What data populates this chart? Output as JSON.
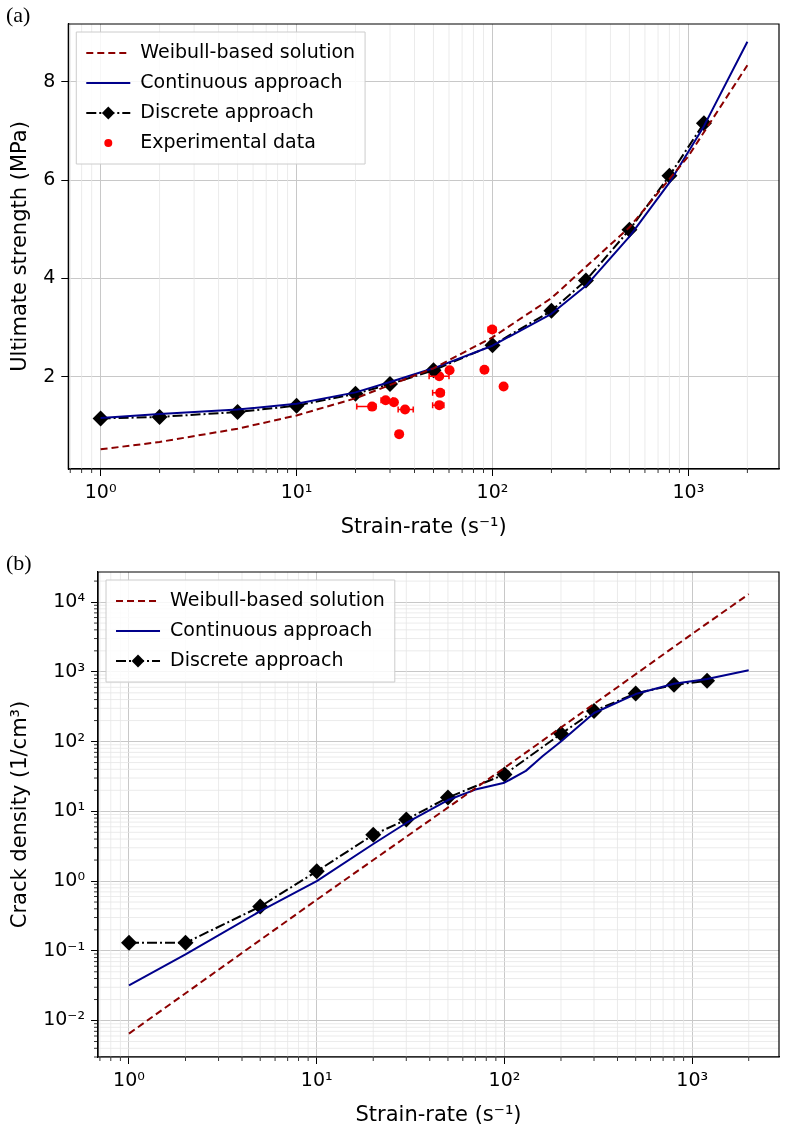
{
  "chart_data": [
    {
      "type": "line",
      "title": "(a)",
      "xlabel": "Strain-rate (s⁻¹)",
      "ylabel": "Ultimate strength (MPa)",
      "log": "x",
      "grid": true,
      "legend": "top left",
      "xlim": [
        0.684,
        2900
      ],
      "xticks": [
        {
          "value": 1,
          "label": "10⁰"
        },
        {
          "value": 10,
          "label": "10¹"
        },
        {
          "value": 100,
          "label": "10²"
        },
        {
          "value": 1000,
          "label": "10³"
        }
      ],
      "ylim": [
        0.12,
        9.18
      ],
      "yticks": [
        2,
        4,
        6,
        8
      ],
      "series": [
        {
          "name": "Weibull-based solution",
          "color": "#8b0000",
          "line_style": "dashed",
          "marker": "none",
          "x": [
            1,
            2,
            5,
            10,
            20,
            50,
            100,
            200,
            500,
            1000,
            2000
          ],
          "values": [
            0.52,
            0.67,
            0.94,
            1.21,
            1.56,
            2.17,
            2.8,
            3.6,
            5.04,
            6.49,
            8.34
          ]
        },
        {
          "name": "Continuous approach",
          "color": "#00008b",
          "line_style": "solid",
          "marker": "none",
          "x": [
            1,
            2,
            5,
            10,
            20,
            30,
            50,
            100,
            200,
            300,
            500,
            800,
            1200,
            2000
          ],
          "values": [
            1.16,
            1.24,
            1.33,
            1.45,
            1.68,
            1.89,
            2.17,
            2.63,
            3.28,
            3.85,
            4.85,
            5.95,
            7.1,
            8.82
          ]
        },
        {
          "name": "Discrete approach",
          "color": "#000000",
          "line_style": "dashdot",
          "marker": "diamond",
          "x": [
            1,
            2,
            5,
            10,
            20,
            30,
            50,
            100,
            200,
            300,
            500,
            800,
            1200
          ],
          "values": [
            1.15,
            1.18,
            1.28,
            1.41,
            1.65,
            1.85,
            2.13,
            2.64,
            3.34,
            3.96,
            4.99,
            6.09,
            7.16
          ]
        },
        {
          "name": "Experimental data",
          "type": "scatter",
          "color": "#ff0000",
          "marker": "circle",
          "x": [
            24.3,
            28.5,
            31.4,
            35.8,
            33.4,
            53.5,
            60.4,
            54.1,
            53.5,
            91,
            99.7,
            114
          ],
          "values": [
            1.39,
            1.52,
            1.48,
            1.33,
            0.83,
            2.01,
            2.13,
            1.67,
            1.42,
            2.14,
            2.96,
            1.8
          ],
          "xerrors": [
            [
              20.3,
              25.4
            ],
            [
              27,
              31
            ],
            null,
            [
              33,
              39.4
            ],
            null,
            [
              47.5,
              60
            ],
            null,
            [
              49.5,
              56.5
            ],
            [
              49.5,
              56.5
            ],
            null,
            [
              95,
              104
            ],
            null
          ]
        }
      ]
    },
    {
      "type": "line",
      "title": "(b)",
      "xlabel": "Strain-rate (s⁻¹)",
      "ylabel": "Crack density (1/cm³)",
      "log": "xy",
      "grid": true,
      "legend": "top left",
      "xlim": [
        0.684,
        2900
      ],
      "xticks": [
        {
          "value": 1,
          "label": "10⁰"
        },
        {
          "value": 10,
          "label": "10¹"
        },
        {
          "value": 100,
          "label": "10²"
        },
        {
          "value": 1000,
          "label": "10³"
        }
      ],
      "ylim": [
        0.003,
        27000
      ],
      "yticks": [
        {
          "value": 0.01,
          "label": "10⁻²"
        },
        {
          "value": 0.1,
          "label": "10⁻¹"
        },
        {
          "value": 1,
          "label": "10⁰"
        },
        {
          "value": 10,
          "label": "10¹"
        },
        {
          "value": 100,
          "label": "10²"
        },
        {
          "value": 1000,
          "label": "10³"
        },
        {
          "value": 10000,
          "label": "10⁴"
        }
      ],
      "series": [
        {
          "name": "Weibull-based solution",
          "color": "#8b0000",
          "line_style": "dashed",
          "marker": "none",
          "x": [
            1,
            10,
            100,
            1000,
            2000
          ],
          "values": [
            0.0065,
            0.54,
            42,
            3500,
            13000
          ]
        },
        {
          "name": "Continuous approach",
          "color": "#00008b",
          "line_style": "solid",
          "marker": "none",
          "x": [
            1,
            2,
            5,
            10,
            20,
            30,
            50,
            70,
            100,
            130,
            160,
            200,
            300,
            500,
            800,
            1200,
            2000
          ],
          "values": [
            0.032,
            0.089,
            0.37,
            1,
            3.4,
            6.8,
            14.5,
            20.5,
            25.7,
            38,
            62,
            100,
            257,
            480,
            676,
            790,
            1050
          ]
        },
        {
          "name": "Discrete approach",
          "color": "#000000",
          "line_style": "dashdot",
          "marker": "diamond",
          "x": [
            1,
            2,
            5,
            10,
            20,
            30,
            50,
            100,
            200,
            300,
            500,
            800,
            1200
          ],
          "values": [
            0.13,
            0.13,
            0.43,
            1.38,
            4.6,
            7.6,
            15.8,
            33.8,
            129,
            275,
            490,
            650,
            745
          ]
        }
      ]
    }
  ]
}
